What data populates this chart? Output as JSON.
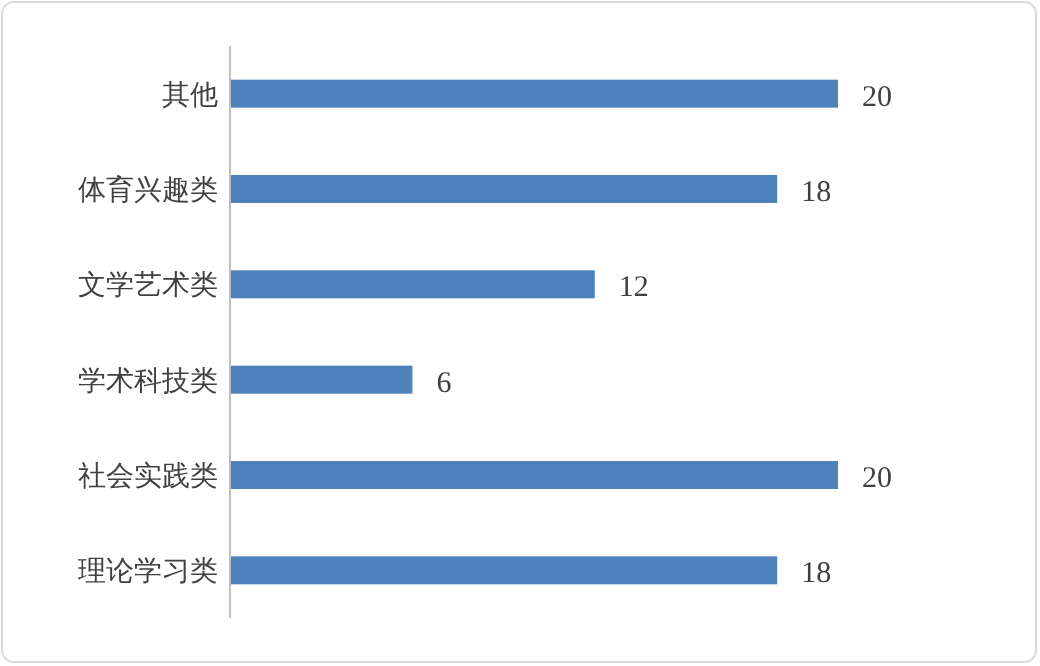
{
  "chart_data": {
    "type": "bar",
    "orientation": "horizontal",
    "categories": [
      "其他",
      "体育兴趣类",
      "文学艺术类",
      "学术科技类",
      "社会实践类",
      "理论学习类"
    ],
    "values": [
      20,
      18,
      12,
      6,
      20,
      18
    ],
    "color": "#4f81bd",
    "data_labels": true
  }
}
